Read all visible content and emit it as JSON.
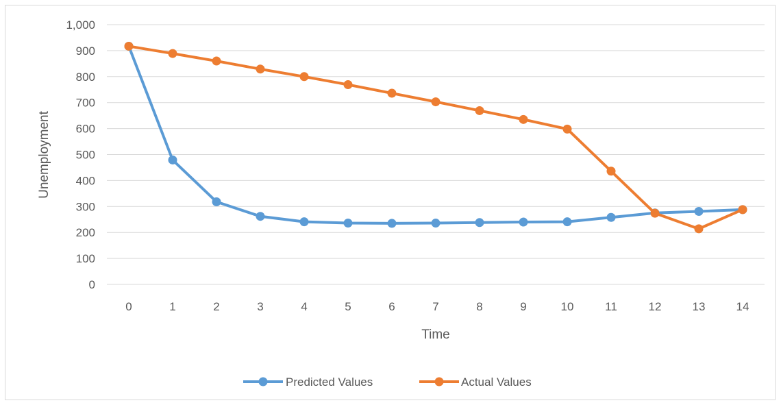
{
  "chart_data": {
    "type": "line",
    "title": "",
    "xlabel": "Time",
    "ylabel": "Unemployment",
    "x": [
      0,
      1,
      2,
      3,
      4,
      5,
      6,
      7,
      8,
      9,
      10,
      11,
      12,
      13,
      14
    ],
    "ylim": [
      0,
      1000
    ],
    "yticks": [
      0,
      100,
      200,
      300,
      400,
      500,
      600,
      700,
      800,
      900,
      1000
    ],
    "ytick_labels": [
      "0",
      "100",
      "200",
      "300",
      "400",
      "500",
      "600",
      "700",
      "800",
      "900",
      "1,000"
    ],
    "grid": true,
    "legend_position": "bottom",
    "series": [
      {
        "name": "Predicted Values",
        "color": "#5b9bd5",
        "values": [
          917,
          479,
          318,
          262,
          241,
          236,
          235,
          236,
          238,
          240,
          241,
          258,
          275,
          281,
          288
        ]
      },
      {
        "name": "Actual Values",
        "color": "#ed7d31",
        "values": [
          917,
          889,
          860,
          829,
          800,
          769,
          736,
          703,
          669,
          635,
          598,
          436,
          274,
          214,
          288
        ]
      }
    ]
  }
}
